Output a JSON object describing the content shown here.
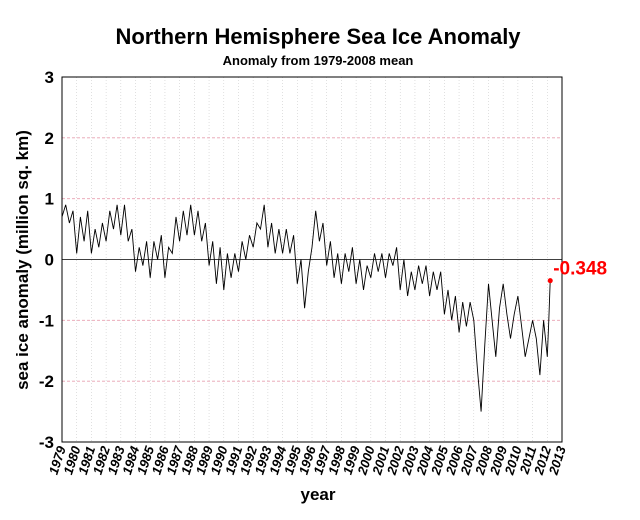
{
  "chart_data": {
    "type": "line",
    "title": "Northern Hemisphere Sea Ice Anomaly",
    "subtitle": "Anomaly from 1979-2008 mean",
    "xlabel": "year",
    "ylabel": "sea ice anomaly (million sq. km)",
    "xlim": [
      1979,
      2013
    ],
    "ylim": [
      -3,
      3
    ],
    "yticks": [
      "3",
      "2",
      "1",
      "0",
      "-1",
      "-2",
      "-3"
    ],
    "xticks": [
      "1979",
      "1980",
      "1981",
      "1982",
      "1983",
      "1984",
      "1985",
      "1986",
      "1987",
      "1988",
      "1989",
      "1990",
      "1991",
      "1992",
      "1993",
      "1994",
      "1995",
      "1996",
      "1997",
      "1998",
      "1999",
      "2000",
      "2001",
      "2002",
      "2003",
      "2004",
      "2005",
      "2006",
      "2007",
      "2008",
      "2009",
      "2010",
      "2011",
      "2012",
      "2013"
    ],
    "grid": true,
    "zero_line": true,
    "line_color": "#000000",
    "annotation": {
      "text": "-0.348",
      "x": 2012.2,
      "y": -0.348,
      "color": "#ff0000"
    },
    "series": [
      {
        "values": [
          [
            1979.0,
            0.7
          ],
          [
            1979.25,
            0.9
          ],
          [
            1979.5,
            0.6
          ],
          [
            1979.75,
            0.8
          ],
          [
            1980.0,
            0.1
          ],
          [
            1980.25,
            0.7
          ],
          [
            1980.5,
            0.3
          ],
          [
            1980.75,
            0.8
          ],
          [
            1981.0,
            0.1
          ],
          [
            1981.25,
            0.5
          ],
          [
            1981.5,
            0.2
          ],
          [
            1981.75,
            0.6
          ],
          [
            1982.0,
            0.3
          ],
          [
            1982.25,
            0.8
          ],
          [
            1982.5,
            0.5
          ],
          [
            1982.75,
            0.9
          ],
          [
            1983.0,
            0.4
          ],
          [
            1983.25,
            0.9
          ],
          [
            1983.5,
            0.3
          ],
          [
            1983.75,
            0.5
          ],
          [
            1984.0,
            -0.2
          ],
          [
            1984.25,
            0.2
          ],
          [
            1984.5,
            -0.1
          ],
          [
            1984.75,
            0.3
          ],
          [
            1985.0,
            -0.3
          ],
          [
            1985.25,
            0.3
          ],
          [
            1985.5,
            0.0
          ],
          [
            1985.75,
            0.4
          ],
          [
            1986.0,
            -0.3
          ],
          [
            1986.25,
            0.2
          ],
          [
            1986.5,
            0.1
          ],
          [
            1986.75,
            0.7
          ],
          [
            1987.0,
            0.3
          ],
          [
            1987.25,
            0.8
          ],
          [
            1987.5,
            0.4
          ],
          [
            1987.75,
            0.9
          ],
          [
            1988.0,
            0.4
          ],
          [
            1988.25,
            0.8
          ],
          [
            1988.5,
            0.3
          ],
          [
            1988.75,
            0.6
          ],
          [
            1989.0,
            -0.1
          ],
          [
            1989.25,
            0.3
          ],
          [
            1989.5,
            -0.4
          ],
          [
            1989.75,
            0.2
          ],
          [
            1990.0,
            -0.5
          ],
          [
            1990.25,
            0.1
          ],
          [
            1990.5,
            -0.3
          ],
          [
            1990.75,
            0.1
          ],
          [
            1991.0,
            -0.2
          ],
          [
            1991.25,
            0.3
          ],
          [
            1991.5,
            0.0
          ],
          [
            1991.75,
            0.4
          ],
          [
            1992.0,
            0.2
          ],
          [
            1992.25,
            0.6
          ],
          [
            1992.5,
            0.5
          ],
          [
            1992.75,
            0.9
          ],
          [
            1993.0,
            0.2
          ],
          [
            1993.25,
            0.6
          ],
          [
            1993.5,
            0.1
          ],
          [
            1993.75,
            0.5
          ],
          [
            1994.0,
            0.1
          ],
          [
            1994.25,
            0.5
          ],
          [
            1994.5,
            0.1
          ],
          [
            1994.75,
            0.4
          ],
          [
            1995.0,
            -0.4
          ],
          [
            1995.25,
            0.0
          ],
          [
            1995.5,
            -0.8
          ],
          [
            1995.75,
            -0.2
          ],
          [
            1996.0,
            0.2
          ],
          [
            1996.25,
            0.8
          ],
          [
            1996.5,
            0.3
          ],
          [
            1996.75,
            0.6
          ],
          [
            1997.0,
            -0.1
          ],
          [
            1997.25,
            0.3
          ],
          [
            1997.5,
            -0.3
          ],
          [
            1997.75,
            0.1
          ],
          [
            1998.0,
            -0.4
          ],
          [
            1998.25,
            0.1
          ],
          [
            1998.5,
            -0.2
          ],
          [
            1998.75,
            0.2
          ],
          [
            1999.0,
            -0.4
          ],
          [
            1999.25,
            0.0
          ],
          [
            1999.5,
            -0.5
          ],
          [
            1999.75,
            -0.1
          ],
          [
            2000.0,
            -0.3
          ],
          [
            2000.25,
            0.1
          ],
          [
            2000.5,
            -0.2
          ],
          [
            2000.75,
            0.1
          ],
          [
            2001.0,
            -0.3
          ],
          [
            2001.25,
            0.1
          ],
          [
            2001.5,
            -0.1
          ],
          [
            2001.75,
            0.2
          ],
          [
            2002.0,
            -0.5
          ],
          [
            2002.25,
            0.0
          ],
          [
            2002.5,
            -0.6
          ],
          [
            2002.75,
            -0.2
          ],
          [
            2003.0,
            -0.5
          ],
          [
            2003.25,
            -0.1
          ],
          [
            2003.5,
            -0.4
          ],
          [
            2003.75,
            -0.1
          ],
          [
            2004.0,
            -0.6
          ],
          [
            2004.25,
            -0.2
          ],
          [
            2004.5,
            -0.5
          ],
          [
            2004.75,
            -0.2
          ],
          [
            2005.0,
            -0.9
          ],
          [
            2005.25,
            -0.5
          ],
          [
            2005.5,
            -1.0
          ],
          [
            2005.75,
            -0.6
          ],
          [
            2006.0,
            -1.2
          ],
          [
            2006.25,
            -0.7
          ],
          [
            2006.5,
            -1.1
          ],
          [
            2006.75,
            -0.7
          ],
          [
            2007.0,
            -1.0
          ],
          [
            2007.25,
            -1.8
          ],
          [
            2007.5,
            -2.5
          ],
          [
            2007.75,
            -1.4
          ],
          [
            2008.0,
            -0.4
          ],
          [
            2008.25,
            -1.0
          ],
          [
            2008.5,
            -1.6
          ],
          [
            2008.75,
            -0.8
          ],
          [
            2009.0,
            -0.4
          ],
          [
            2009.25,
            -0.9
          ],
          [
            2009.5,
            -1.3
          ],
          [
            2009.75,
            -0.9
          ],
          [
            2010.0,
            -0.6
          ],
          [
            2010.25,
            -1.1
          ],
          [
            2010.5,
            -1.6
          ],
          [
            2010.75,
            -1.3
          ],
          [
            2011.0,
            -1.0
          ],
          [
            2011.25,
            -1.3
          ],
          [
            2011.5,
            -1.9
          ],
          [
            2011.75,
            -1.0
          ],
          [
            2012.0,
            -1.6
          ],
          [
            2012.1,
            -1.0
          ],
          [
            2012.2,
            -0.348
          ]
        ]
      }
    ]
  }
}
